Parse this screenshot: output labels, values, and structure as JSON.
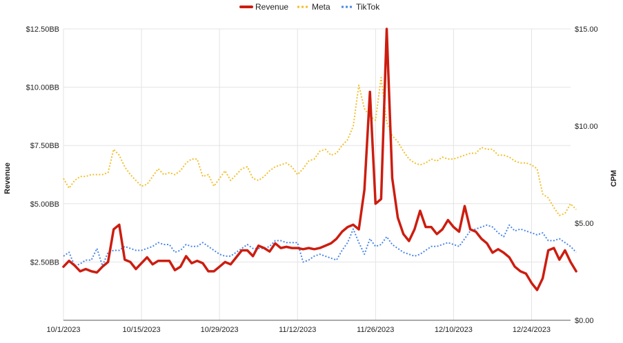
{
  "chart_data": {
    "type": "line",
    "ylabel": "Revenue",
    "y2label": "CPM",
    "ylim": [
      0,
      12.5
    ],
    "y2lim": [
      0,
      15
    ],
    "xlim": [
      "2023-10-01",
      "2023-12-31"
    ],
    "grid": true,
    "legend_position": "top-center",
    "x_ticks": [
      "10/1/2023",
      "10/15/2023",
      "10/29/2023",
      "11/12/2023",
      "11/26/2023",
      "12/10/2023",
      "12/24/2023"
    ],
    "y_ticks": [
      "$2.50BB",
      "$5.00BB",
      "$7.50BB",
      "$10.00BB",
      "$12.50BB"
    ],
    "y2_ticks": [
      "$0.00",
      "$5.00",
      "$10.00",
      "$15.00"
    ],
    "series": [
      {
        "name": "Revenue",
        "axis": "left",
        "color": "#cc1d10",
        "style": "solid",
        "values": [
          2.3,
          2.55,
          2.35,
          2.1,
          2.2,
          2.1,
          2.05,
          2.3,
          2.5,
          3.9,
          4.1,
          2.6,
          2.5,
          2.2,
          2.45,
          2.7,
          2.4,
          2.55,
          2.55,
          2.55,
          2.15,
          2.3,
          2.75,
          2.45,
          2.55,
          2.45,
          2.1,
          2.1,
          2.3,
          2.5,
          2.4,
          2.7,
          3.0,
          3.0,
          2.75,
          3.2,
          3.1,
          2.95,
          3.3,
          3.1,
          3.15,
          3.1,
          3.1,
          3.05,
          3.1,
          3.05,
          3.1,
          3.2,
          3.3,
          3.5,
          3.8,
          4.0,
          4.1,
          3.9,
          5.6,
          9.8,
          5.0,
          5.2,
          12.5,
          6.1,
          4.4,
          3.7,
          3.4,
          3.9,
          4.7,
          4.0,
          4.0,
          3.7,
          3.9,
          4.3,
          4.0,
          3.8,
          4.9,
          3.9,
          3.8,
          3.5,
          3.3,
          2.9,
          3.05,
          2.9,
          2.7,
          2.3,
          2.1,
          2.0,
          1.6,
          1.3,
          1.8,
          3.0,
          3.1,
          2.6,
          3.0,
          2.5,
          2.1
        ]
      },
      {
        "name": "Meta",
        "axis": "right",
        "color": "#f2bf2b",
        "style": "dotted",
        "values": [
          7.3,
          6.8,
          7.2,
          7.4,
          7.4,
          7.5,
          7.5,
          7.5,
          7.6,
          8.8,
          8.5,
          7.9,
          7.5,
          7.2,
          6.9,
          7.0,
          7.4,
          7.8,
          7.5,
          7.6,
          7.5,
          7.7,
          8.1,
          8.3,
          8.3,
          7.4,
          7.5,
          6.9,
          7.3,
          7.7,
          7.2,
          7.5,
          7.8,
          7.9,
          7.3,
          7.2,
          7.4,
          7.7,
          7.9,
          8.0,
          8.1,
          7.9,
          7.5,
          7.8,
          8.2,
          8.3,
          8.7,
          8.8,
          8.5,
          8.6,
          9.0,
          9.3,
          10.0,
          12.1,
          10.9,
          10.5,
          10.3,
          12.5,
          10.2,
          9.5,
          9.2,
          8.7,
          8.3,
          8.1,
          8.0,
          8.1,
          8.3,
          8.2,
          8.4,
          8.3,
          8.3,
          8.4,
          8.5,
          8.6,
          8.6,
          8.9,
          8.8,
          8.8,
          8.5,
          8.5,
          8.4,
          8.2,
          8.1,
          8.1,
          8.0,
          7.8,
          6.5,
          6.3,
          5.8,
          5.4,
          5.5,
          6.0,
          5.7
        ]
      },
      {
        "name": "TikTok",
        "axis": "right",
        "color": "#4a86e8",
        "style": "dotted",
        "values": [
          3.3,
          3.5,
          2.8,
          2.9,
          3.1,
          3.1,
          3.7,
          2.8,
          3.5,
          3.6,
          3.6,
          3.8,
          3.7,
          3.6,
          3.6,
          3.7,
          3.8,
          4.0,
          3.9,
          3.9,
          3.5,
          3.6,
          3.9,
          3.8,
          3.8,
          4.0,
          3.8,
          3.6,
          3.4,
          3.3,
          3.3,
          3.5,
          3.7,
          3.9,
          3.7,
          3.7,
          3.7,
          3.8,
          4.1,
          4.1,
          4.0,
          4.0,
          4.0,
          3.0,
          3.1,
          3.3,
          3.4,
          3.3,
          3.2,
          3.1,
          3.6,
          4.0,
          4.7,
          4.0,
          3.4,
          4.2,
          3.8,
          3.9,
          4.3,
          3.9,
          3.7,
          3.5,
          3.4,
          3.3,
          3.4,
          3.6,
          3.8,
          3.8,
          3.9,
          4.0,
          3.9,
          3.8,
          4.2,
          4.6,
          4.7,
          4.8,
          4.9,
          4.8,
          4.5,
          4.3,
          4.9,
          4.6,
          4.7,
          4.6,
          4.5,
          4.4,
          4.5,
          4.1,
          4.1,
          4.2,
          4.0,
          3.8,
          3.5
        ]
      }
    ]
  }
}
